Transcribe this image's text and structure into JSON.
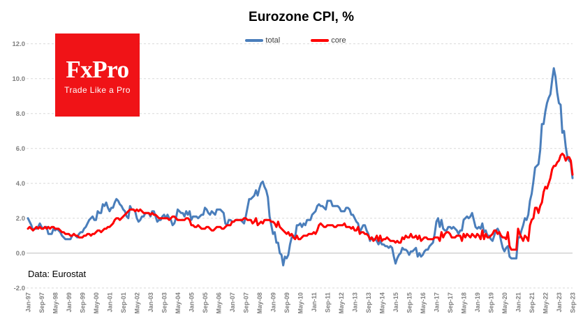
{
  "title": "Eurozone CPI, %",
  "source_note": "Data: Eurostat",
  "logo": {
    "word": "FxPro",
    "tagline": "Trade Like a Pro",
    "bg_color": "#f01317",
    "text_color": "#ffffff"
  },
  "legend": [
    {
      "label": "total",
      "color": "#4a7ebb"
    },
    {
      "label": "core",
      "color": "#ff0000"
    }
  ],
  "colors": {
    "grid": "#d9d9d9",
    "zero_line": "#bdbdbd",
    "tick_text": "#7f7f7f",
    "background": "#ffffff"
  },
  "chart_data": {
    "type": "line",
    "title": "Eurozone CPI, %",
    "xlabel": "",
    "ylabel": "",
    "x_unit": "month",
    "x_start": "Jan-97",
    "x_end": "Sep-23",
    "ylim": [
      -2.0,
      12.0
    ],
    "grid": "horizontal-dashed",
    "legend_position": "top-center",
    "y_ticks": [
      {
        "value": 12,
        "label": "12.0"
      },
      {
        "value": 10,
        "label": "10.0"
      },
      {
        "value": 8,
        "label": "8.0"
      },
      {
        "value": 6,
        "label": "6.0"
      },
      {
        "value": 4,
        "label": "4.0"
      },
      {
        "value": 2,
        "label": "2.0"
      },
      {
        "value": 0,
        "label": "0.0"
      },
      {
        "value": -2,
        "label": "-2.0"
      }
    ],
    "x_tick_labels": [
      "Jan-97",
      "Sep-97",
      "May-98",
      "Jan-99",
      "Sep-99",
      "May-00",
      "Jan-01",
      "Sep-01",
      "May-02",
      "Jan-03",
      "Sep-03",
      "May-04",
      "Jan-05",
      "Sep-05",
      "May-06",
      "Jan-07",
      "Sep-07",
      "May-08",
      "Jan-09",
      "Sep-09",
      "May-10",
      "Jan-11",
      "Sep-11",
      "May-12",
      "Jan-13",
      "Sep-13",
      "May-14",
      "Jan-15",
      "Sep-15",
      "May-16",
      "Jan-17",
      "Sep-17",
      "May-18",
      "Jan-19",
      "Sep-19",
      "May-20",
      "Jan-21",
      "Sep-21",
      "May-22",
      "Jan-23",
      "Sep-23"
    ],
    "x_tick_interval_months": 8,
    "series": [
      {
        "name": "total",
        "color": "#4a7ebb",
        "values": [
          2.0,
          1.8,
          1.6,
          1.3,
          1.4,
          1.4,
          1.5,
          1.7,
          1.5,
          1.4,
          1.5,
          1.5,
          1.1,
          1.1,
          1.1,
          1.4,
          1.3,
          1.4,
          1.3,
          1.2,
          1.0,
          0.9,
          0.8,
          0.8,
          0.8,
          0.8,
          1.0,
          1.1,
          1.0,
          0.9,
          1.1,
          1.2,
          1.2,
          1.4,
          1.5,
          1.7,
          1.9,
          2.0,
          2.1,
          1.9,
          1.9,
          2.4,
          2.3,
          2.3,
          2.8,
          2.7,
          2.9,
          2.6,
          2.4,
          2.6,
          2.6,
          2.9,
          3.1,
          3.0,
          2.8,
          2.7,
          2.5,
          2.4,
          2.1,
          2.0,
          2.7,
          2.5,
          2.5,
          2.4,
          2.0,
          1.8,
          1.9,
          2.1,
          2.1,
          2.3,
          2.3,
          2.3,
          2.1,
          2.4,
          2.4,
          2.1,
          1.8,
          1.9,
          1.9,
          2.1,
          2.2,
          2.0,
          2.2,
          2.0,
          1.9,
          1.6,
          1.7,
          2.0,
          2.5,
          2.4,
          2.3,
          2.3,
          2.1,
          2.4,
          2.2,
          2.4,
          1.9,
          2.1,
          2.1,
          2.1,
          2.0,
          2.1,
          2.2,
          2.2,
          2.6,
          2.5,
          2.3,
          2.2,
          2.4,
          2.3,
          2.2,
          2.5,
          2.5,
          2.5,
          2.4,
          2.3,
          1.7,
          1.6,
          1.9,
          1.9,
          1.8,
          1.8,
          1.9,
          1.9,
          1.9,
          1.9,
          1.8,
          1.7,
          2.1,
          2.6,
          3.1,
          3.1,
          3.2,
          3.3,
          3.6,
          3.3,
          3.7,
          4.0,
          4.1,
          3.8,
          3.6,
          3.2,
          2.1,
          1.6,
          1.1,
          1.2,
          0.6,
          0.6,
          0.0,
          -0.1,
          -0.7,
          -0.2,
          -0.3,
          -0.1,
          0.5,
          0.9,
          1.0,
          0.9,
          1.6,
          1.6,
          1.7,
          1.5,
          1.7,
          1.6,
          1.9,
          1.9,
          1.9,
          2.2,
          2.3,
          2.4,
          2.7,
          2.8,
          2.7,
          2.7,
          2.6,
          2.5,
          3.0,
          3.0,
          3.0,
          2.7,
          2.7,
          2.7,
          2.7,
          2.6,
          2.4,
          2.4,
          2.4,
          2.6,
          2.6,
          2.5,
          2.2,
          2.2,
          2.0,
          1.8,
          1.7,
          1.2,
          1.4,
          1.6,
          1.6,
          1.3,
          1.1,
          0.7,
          0.9,
          0.8,
          0.8,
          0.7,
          0.5,
          0.7,
          0.5,
          0.5,
          0.4,
          0.4,
          0.3,
          0.4,
          0.3,
          -0.2,
          -0.6,
          -0.3,
          -0.1,
          0.0,
          0.3,
          0.2,
          0.2,
          0.1,
          -0.1,
          0.1,
          0.1,
          0.2,
          0.3,
          -0.2,
          0.0,
          -0.2,
          -0.1,
          0.1,
          0.2,
          0.2,
          0.4,
          0.5,
          0.6,
          1.1,
          1.8,
          2.0,
          1.5,
          1.9,
          1.4,
          1.3,
          1.3,
          1.5,
          1.5,
          1.4,
          1.5,
          1.4,
          1.3,
          1.1,
          1.3,
          1.3,
          1.9,
          2.0,
          2.1,
          2.0,
          2.1,
          2.3,
          1.9,
          1.5,
          1.4,
          1.5,
          1.4,
          1.7,
          1.2,
          1.3,
          1.0,
          1.0,
          0.8,
          0.7,
          1.0,
          1.3,
          1.4,
          1.2,
          0.7,
          0.3,
          0.1,
          0.3,
          0.4,
          -0.2,
          -0.3,
          -0.3,
          -0.3,
          -0.3,
          0.9,
          0.9,
          1.3,
          1.6,
          2.0,
          1.9,
          2.2,
          3.0,
          3.4,
          4.1,
          4.9,
          5.0,
          5.1,
          5.9,
          7.4,
          7.4,
          8.1,
          8.6,
          8.9,
          9.1,
          9.9,
          10.6,
          10.1,
          9.2,
          8.6,
          8.5,
          6.9,
          7.0,
          6.1,
          5.5,
          5.3,
          5.2,
          4.3
        ]
      },
      {
        "name": "core",
        "color": "#ff0000",
        "values": [
          1.4,
          1.5,
          1.4,
          1.3,
          1.4,
          1.5,
          1.4,
          1.5,
          1.4,
          1.4,
          1.5,
          1.4,
          1.5,
          1.4,
          1.5,
          1.5,
          1.4,
          1.4,
          1.4,
          1.3,
          1.2,
          1.2,
          1.1,
          1.1,
          1.1,
          1.0,
          1.0,
          1.1,
          1.0,
          1.0,
          0.9,
          0.9,
          0.9,
          1.0,
          1.0,
          1.1,
          1.1,
          1.0,
          1.1,
          1.1,
          1.2,
          1.3,
          1.3,
          1.2,
          1.3,
          1.4,
          1.4,
          1.5,
          1.5,
          1.6,
          1.7,
          1.9,
          2.0,
          2.0,
          1.9,
          2.0,
          2.1,
          2.2,
          2.3,
          2.4,
          2.5,
          2.5,
          2.5,
          2.4,
          2.5,
          2.4,
          2.5,
          2.4,
          2.3,
          2.3,
          2.3,
          2.3,
          2.2,
          2.3,
          2.2,
          2.2,
          2.1,
          2.0,
          2.0,
          2.0,
          2.0,
          2.0,
          2.0,
          1.9,
          2.0,
          2.1,
          2.1,
          2.0,
          1.9,
          1.9,
          1.9,
          1.9,
          1.9,
          2.0,
          2.0,
          1.9,
          1.6,
          1.6,
          1.5,
          1.5,
          1.6,
          1.5,
          1.4,
          1.4,
          1.4,
          1.5,
          1.5,
          1.4,
          1.3,
          1.3,
          1.4,
          1.5,
          1.5,
          1.5,
          1.4,
          1.4,
          1.5,
          1.6,
          1.6,
          1.6,
          1.8,
          1.8,
          1.9,
          1.9,
          1.9,
          1.9,
          1.9,
          2.0,
          2.0,
          1.9,
          1.9,
          1.9,
          1.7,
          1.8,
          2.0,
          1.6,
          1.7,
          1.8,
          1.7,
          1.9,
          1.9,
          1.9,
          1.9,
          1.8,
          1.8,
          1.7,
          1.5,
          1.8,
          1.5,
          1.4,
          1.3,
          1.2,
          1.1,
          1.2,
          1.0,
          1.1,
          0.9,
          0.8,
          1.0,
          0.8,
          0.8,
          0.9,
          1.0,
          1.0,
          1.0,
          1.1,
          1.1,
          1.1,
          1.2,
          1.1,
          1.3,
          1.6,
          1.7,
          1.6,
          1.5,
          1.5,
          1.6,
          1.6,
          1.6,
          1.6,
          1.5,
          1.5,
          1.6,
          1.6,
          1.6,
          1.6,
          1.7,
          1.5,
          1.5,
          1.5,
          1.4,
          1.5,
          1.3,
          1.3,
          1.5,
          1.1,
          1.2,
          1.2,
          1.1,
          1.1,
          1.0,
          0.8,
          0.9,
          0.7,
          0.8,
          1.0,
          0.7,
          1.0,
          0.7,
          0.8,
          0.8,
          0.9,
          0.8,
          0.7,
          0.7,
          0.7,
          0.6,
          0.7,
          0.6,
          0.6,
          0.9,
          0.8,
          1.0,
          0.9,
          0.9,
          1.1,
          0.9,
          0.9,
          1.0,
          0.8,
          1.0,
          0.7,
          0.8,
          0.9,
          0.9,
          0.8,
          0.8,
          0.8,
          0.8,
          0.9,
          0.9,
          0.9,
          0.7,
          1.2,
          0.9,
          1.1,
          1.2,
          1.2,
          1.1,
          0.9,
          0.9,
          0.9,
          1.0,
          1.0,
          1.0,
          0.7,
          1.1,
          0.9,
          1.1,
          1.0,
          0.9,
          1.1,
          1.0,
          0.9,
          1.1,
          1.0,
          0.8,
          1.3,
          0.8,
          1.1,
          0.9,
          0.9,
          1.0,
          1.1,
          1.3,
          1.3,
          1.1,
          1.2,
          1.0,
          0.9,
          0.9,
          0.8,
          1.2,
          0.4,
          0.2,
          0.2,
          0.2,
          0.2,
          1.4,
          1.1,
          0.9,
          0.7,
          1.0,
          0.9,
          0.7,
          1.6,
          1.9,
          2.0,
          2.6,
          2.6,
          2.3,
          2.7,
          2.9,
          3.5,
          3.8,
          3.7,
          4.0,
          4.3,
          4.8,
          5.0,
          5.0,
          5.2,
          5.3,
          5.6,
          5.7,
          5.6,
          5.3,
          5.5,
          5.5,
          5.3,
          4.5
        ]
      }
    ]
  }
}
